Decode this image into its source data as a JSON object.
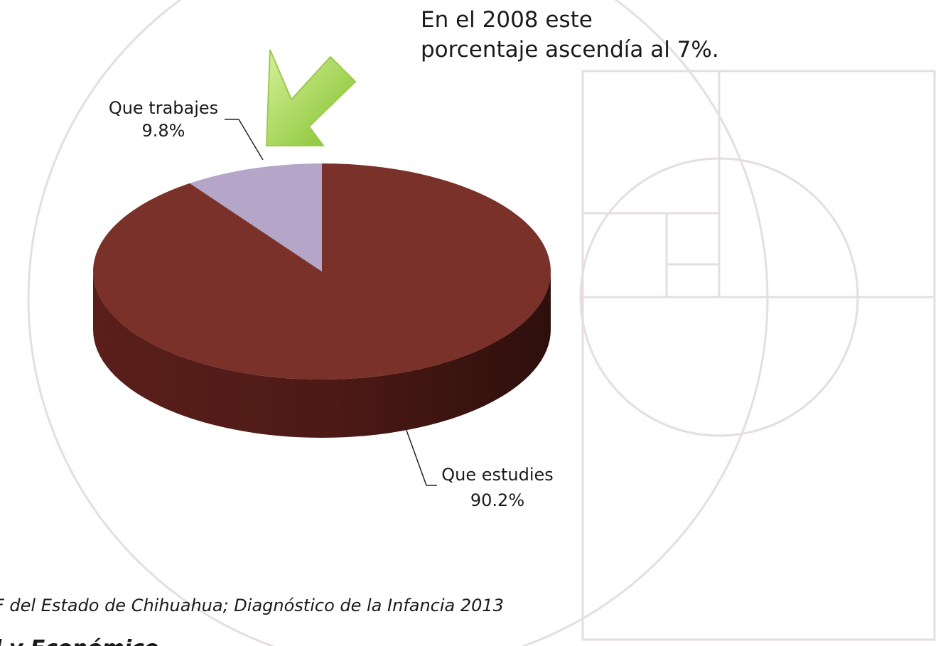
{
  "chart_data": {
    "type": "pie",
    "annotation": "En el 2008 este porcentaje ascendía al 7%.",
    "categories": [
      "Que estudies",
      "Que trabajes"
    ],
    "values": [
      90.2,
      9.8
    ],
    "value_labels": [
      "90.2%",
      "9.8%"
    ],
    "colors": [
      "#7a3129",
      "#b4a5c9"
    ]
  },
  "source": "F del Estado de Chihuahua; Diagnóstico de la Infancia 2013",
  "footer": "l y Económico"
}
